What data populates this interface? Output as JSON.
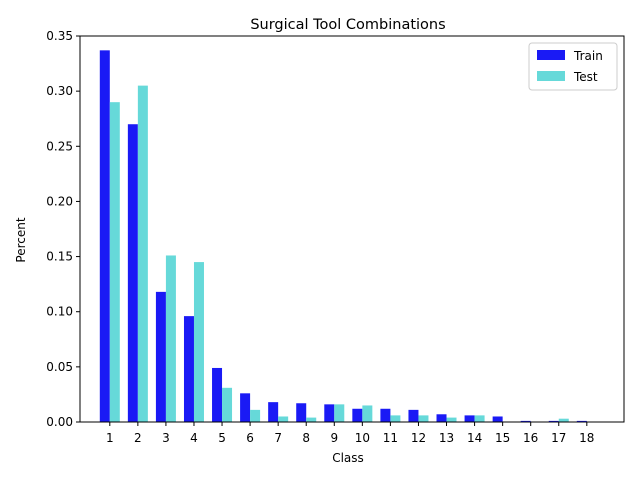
{
  "chart_data": {
    "type": "bar",
    "title": "Surgical Tool Combinations",
    "xlabel": "Class",
    "ylabel": "Percent",
    "categories": [
      "1",
      "2",
      "3",
      "4",
      "5",
      "6",
      "7",
      "8",
      "9",
      "10",
      "11",
      "12",
      "13",
      "14",
      "15",
      "16",
      "17",
      "18"
    ],
    "series": [
      {
        "name": "Train",
        "color": "#1a1af5",
        "values": [
          0.337,
          0.27,
          0.118,
          0.096,
          0.049,
          0.026,
          0.018,
          0.017,
          0.016,
          0.012,
          0.012,
          0.011,
          0.007,
          0.006,
          0.005,
          0.001,
          0.001,
          0.001
        ]
      },
      {
        "name": "Test",
        "color": "#66d9d9",
        "values": [
          0.29,
          0.305,
          0.151,
          0.145,
          0.031,
          0.011,
          0.005,
          0.004,
          0.016,
          0.015,
          0.006,
          0.006,
          0.004,
          0.006,
          0.0,
          0.0,
          0.003,
          0.0
        ]
      }
    ],
    "ylim": [
      0,
      0.35
    ],
    "yticks": [
      "0.00",
      "0.05",
      "0.10",
      "0.15",
      "0.20",
      "0.25",
      "0.30",
      "0.35"
    ],
    "grid": false,
    "legend_position": "top-right"
  }
}
